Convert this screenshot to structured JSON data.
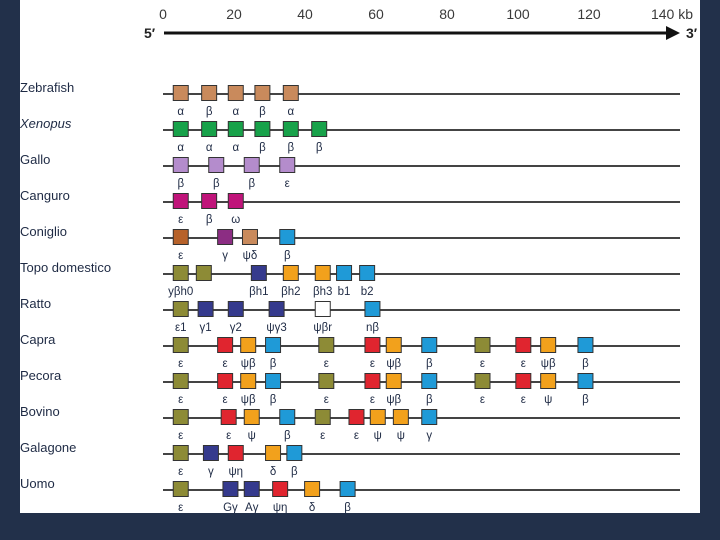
{
  "axis": {
    "start_label": "5′",
    "end_label": "3′",
    "unit": "kb",
    "ticks": [
      "0",
      "20",
      "40",
      "60",
      "80",
      "100",
      "120",
      "140 kb"
    ],
    "tick_values": [
      0,
      20,
      40,
      60,
      80,
      100,
      120,
      140
    ]
  },
  "colors": {
    "orange_brown": "#c98a5c",
    "green": "#18a24a",
    "lilac": "#b48ccc",
    "magenta": "#c0147a",
    "brown": "#b7622a",
    "purple": "#8c2d83",
    "olive": "#8d8b36",
    "navy": "#353a8d",
    "orange": "#f2a11c",
    "cyan": "#1f9ad7",
    "red": "#e0252f",
    "white": "#ffffff"
  },
  "species": [
    {
      "name": "Zebrafish",
      "italic": false,
      "genes": [
        {
          "pos": 5,
          "color": "orange_brown",
          "label": "α"
        },
        {
          "pos": 13,
          "color": "orange_brown",
          "label": "β"
        },
        {
          "pos": 20.5,
          "color": "orange_brown",
          "label": "α"
        },
        {
          "pos": 28,
          "color": "orange_brown",
          "label": "β"
        },
        {
          "pos": 36,
          "color": "orange_brown",
          "label": "α"
        }
      ]
    },
    {
      "name": "Xenopus",
      "italic": true,
      "genes": [
        {
          "pos": 5,
          "color": "green",
          "label": "α"
        },
        {
          "pos": 13,
          "color": "green",
          "label": "α"
        },
        {
          "pos": 20.5,
          "color": "green",
          "label": "α"
        },
        {
          "pos": 28,
          "color": "green",
          "label": "β"
        },
        {
          "pos": 36,
          "color": "green",
          "label": "β"
        },
        {
          "pos": 44,
          "color": "green",
          "label": "β"
        }
      ]
    },
    {
      "name": "Gallo",
      "italic": false,
      "genes": [
        {
          "pos": 5,
          "color": "lilac",
          "label": "β"
        },
        {
          "pos": 15,
          "color": "lilac",
          "label": "β"
        },
        {
          "pos": 25,
          "color": "lilac",
          "label": "β"
        },
        {
          "pos": 35,
          "color": "lilac",
          "label": "ε"
        }
      ]
    },
    {
      "name": "Canguro",
      "italic": false,
      "genes": [
        {
          "pos": 5,
          "color": "magenta",
          "label": "ε"
        },
        {
          "pos": 13,
          "color": "magenta",
          "label": "β"
        },
        {
          "pos": 20.5,
          "color": "magenta",
          "label": "ω"
        }
      ]
    },
    {
      "name": "Coniglio",
      "italic": false,
      "genes": [
        {
          "pos": 5,
          "color": "brown",
          "label": "ε"
        },
        {
          "pos": 17.5,
          "color": "purple",
          "label": "γ"
        },
        {
          "pos": 24.5,
          "color": "orange_brown",
          "label": "ψδ"
        },
        {
          "pos": 35,
          "color": "cyan",
          "label": "β"
        }
      ]
    },
    {
      "name": "Topo domestico",
      "italic": false,
      "genes": [
        {
          "pos": 5,
          "color": "olive",
          "label": "yβh0"
        },
        {
          "pos": 11.5,
          "color": "olive",
          "label": ""
        },
        {
          "pos": 27,
          "color": "navy",
          "label": "βh1"
        },
        {
          "pos": 36,
          "color": "orange",
          "label": "βh2"
        },
        {
          "pos": 45,
          "color": "orange",
          "label": "βh3"
        },
        {
          "pos": 51,
          "color": "cyan",
          "label": "b1"
        },
        {
          "pos": 57.5,
          "color": "cyan",
          "label": "b2"
        }
      ]
    },
    {
      "name": "Ratto",
      "italic": false,
      "genes": [
        {
          "pos": 5,
          "color": "olive",
          "label": "ε1"
        },
        {
          "pos": 12,
          "color": "navy",
          "label": "γ1"
        },
        {
          "pos": 20.5,
          "color": "navy",
          "label": "γ2"
        },
        {
          "pos": 32,
          "color": "navy",
          "label": "ψγ3"
        },
        {
          "pos": 45,
          "color": "white",
          "label": "ψβr"
        },
        {
          "pos": 59,
          "color": "cyan",
          "label": "nβ"
        }
      ]
    },
    {
      "name": "Capra",
      "italic": false,
      "genes": [
        {
          "pos": 5,
          "color": "olive",
          "label": "ε"
        },
        {
          "pos": 17.5,
          "color": "red",
          "label": "ε"
        },
        {
          "pos": 24,
          "color": "orange",
          "label": "ψβ"
        },
        {
          "pos": 31,
          "color": "cyan",
          "label": "β"
        },
        {
          "pos": 46,
          "color": "olive",
          "label": "ε"
        },
        {
          "pos": 59,
          "color": "red",
          "label": "ε"
        },
        {
          "pos": 65,
          "color": "orange",
          "label": "ψβ"
        },
        {
          "pos": 75,
          "color": "cyan",
          "label": "β"
        },
        {
          "pos": 90,
          "color": "olive",
          "label": "ε"
        },
        {
          "pos": 101.5,
          "color": "red",
          "label": "ε"
        },
        {
          "pos": 108.5,
          "color": "orange",
          "label": "ψβ"
        },
        {
          "pos": 119,
          "color": "cyan",
          "label": "β"
        }
      ]
    },
    {
      "name": "Pecora",
      "italic": false,
      "genes": [
        {
          "pos": 5,
          "color": "olive",
          "label": "ε"
        },
        {
          "pos": 17.5,
          "color": "red",
          "label": "ε"
        },
        {
          "pos": 24,
          "color": "orange",
          "label": "ψβ"
        },
        {
          "pos": 31,
          "color": "cyan",
          "label": "β"
        },
        {
          "pos": 46,
          "color": "olive",
          "label": "ε"
        },
        {
          "pos": 59,
          "color": "red",
          "label": "ε"
        },
        {
          "pos": 65,
          "color": "orange",
          "label": "ψβ"
        },
        {
          "pos": 75,
          "color": "cyan",
          "label": "β"
        },
        {
          "pos": 90,
          "color": "olive",
          "label": "ε"
        },
        {
          "pos": 101.5,
          "color": "red",
          "label": "ε"
        },
        {
          "pos": 108.5,
          "color": "orange",
          "label": "ψ"
        },
        {
          "pos": 119,
          "color": "cyan",
          "label": "β"
        }
      ]
    },
    {
      "name": "Bovino",
      "italic": false,
      "genes": [
        {
          "pos": 5,
          "color": "olive",
          "label": "ε"
        },
        {
          "pos": 18.5,
          "color": "red",
          "label": "ε"
        },
        {
          "pos": 25,
          "color": "orange",
          "label": "ψ"
        },
        {
          "pos": 35,
          "color": "cyan",
          "label": "β"
        },
        {
          "pos": 45,
          "color": "olive",
          "label": "ε"
        },
        {
          "pos": 54.5,
          "color": "red",
          "label": "ε"
        },
        {
          "pos": 60.5,
          "color": "orange",
          "label": "ψ"
        },
        {
          "pos": 67,
          "color": "orange",
          "label": "ψ"
        },
        {
          "pos": 75,
          "color": "cyan",
          "label": "γ"
        }
      ]
    },
    {
      "name": "Galagone",
      "italic": false,
      "genes": [
        {
          "pos": 5,
          "color": "olive",
          "label": "ε"
        },
        {
          "pos": 13.5,
          "color": "navy",
          "label": "γ"
        },
        {
          "pos": 20.5,
          "color": "red",
          "label": "ψη"
        },
        {
          "pos": 31,
          "color": "orange",
          "label": "δ"
        },
        {
          "pos": 37,
          "color": "cyan",
          "label": "β"
        }
      ]
    },
    {
      "name": "Uomo",
      "italic": false,
      "genes": [
        {
          "pos": 5,
          "color": "olive",
          "label": "ε"
        },
        {
          "pos": 19,
          "color": "navy",
          "label": "Gγ"
        },
        {
          "pos": 25,
          "color": "navy",
          "label": "Aγ"
        },
        {
          "pos": 33,
          "color": "red",
          "label": "ψη"
        },
        {
          "pos": 42,
          "color": "orange",
          "label": "δ"
        },
        {
          "pos": 52,
          "color": "cyan",
          "label": "β"
        }
      ]
    }
  ]
}
